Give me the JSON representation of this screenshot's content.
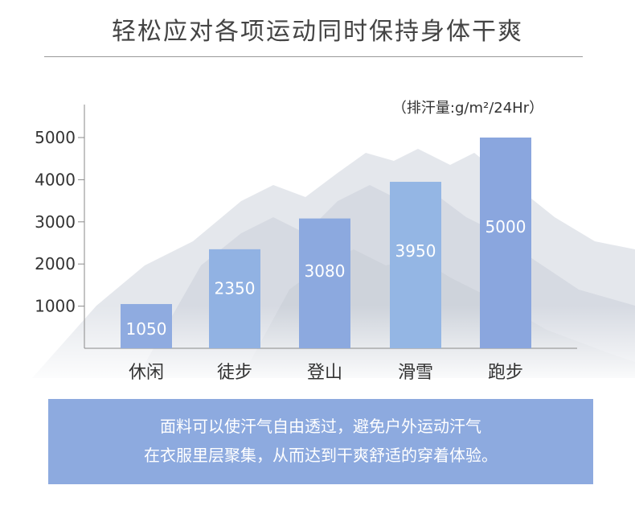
{
  "header": {
    "title": "轻松应对各项运动同时保持身体干爽"
  },
  "chart_data": {
    "type": "bar",
    "unit_note": "（排汗量:g/m²/24Hr）",
    "categories": [
      "休闲",
      "徒步",
      "登山",
      "滑雪",
      "跑步"
    ],
    "values": [
      1050,
      2350,
      3080,
      3950,
      5000
    ],
    "value_labels": [
      "1050",
      "2350",
      "3080",
      "3950",
      "5000"
    ],
    "y_ticks": [
      1000,
      2000,
      3000,
      4000,
      5000
    ],
    "y_tick_labels": [
      "1000",
      "2000",
      "3000",
      "4000",
      "5000"
    ],
    "ylim": [
      0,
      5000
    ],
    "bar_colors": [
      "#8fabe0",
      "#91b2e3",
      "#8ca9df",
      "#94b6e4",
      "#8aa6de"
    ],
    "xlabel": "",
    "ylabel": "",
    "grid": false,
    "legend": "none"
  },
  "footer": {
    "line1": "面料可以使汗气自由透过，避免户外运动汗气",
    "line2": "在衣服里层聚集，从而达到干爽舒适的穿着体验。"
  },
  "colors": {
    "title_text": "#444444",
    "axis": "#8a8a8a",
    "label_text": "#333333",
    "footer_bg": "#8daadf",
    "footer_text": "#ffffff"
  }
}
